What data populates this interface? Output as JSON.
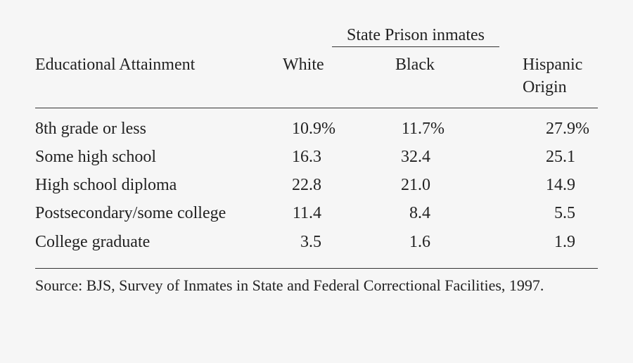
{
  "header": {
    "group_title": "State Prison inmates"
  },
  "table": {
    "columns": [
      "Educational Attainment",
      "White",
      "Black",
      "Hispanic Origin"
    ],
    "rows": [
      [
        "8th grade or less",
        "10.9%",
        "11.7%",
        "27.9%"
      ],
      [
        "Some high school",
        "16.3",
        "32.4",
        "25.1"
      ],
      [
        "High school diploma",
        "22.8",
        "21.0",
        "14.9"
      ],
      [
        "Postsecondary/some college",
        "11.4",
        "8.4",
        "5.5"
      ],
      [
        "College graduate",
        "3.5",
        "1.6",
        "1.9"
      ]
    ]
  },
  "source": "Source: BJS, Survey of Inmates in State and Federal Correctional Facilities, 1997."
}
